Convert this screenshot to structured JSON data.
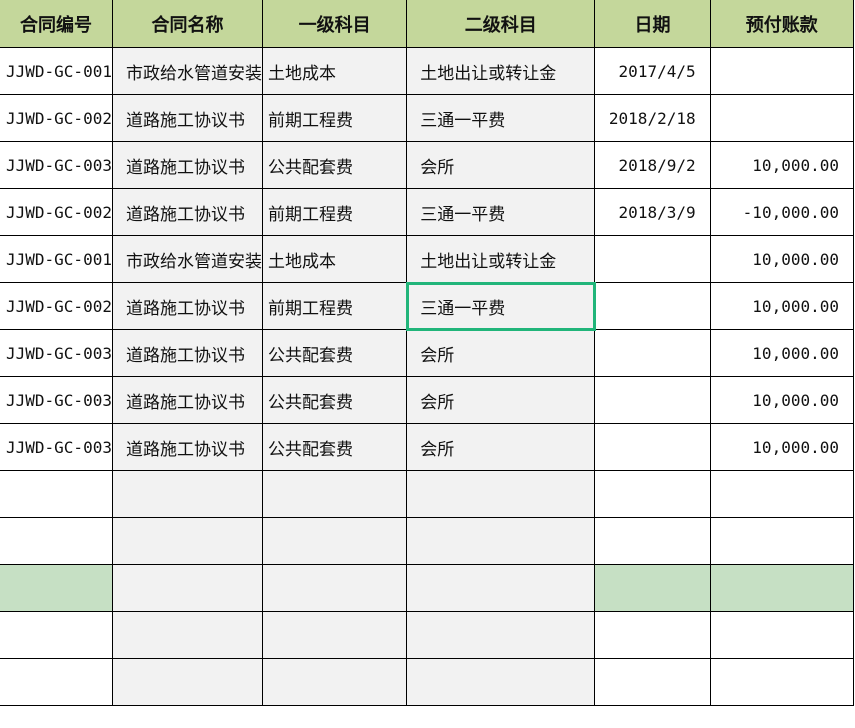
{
  "headers": [
    "合同编号",
    "合同名称",
    "一级科目",
    "二级科目",
    "日期",
    "预付账款"
  ],
  "rows": [
    {
      "id": "JJWD-GC-001",
      "name": "市政给水管道安装",
      "l1": "土地成本",
      "l2": "土地出让或转让金",
      "date": "2017/4/5",
      "amount": ""
    },
    {
      "id": "JJWD-GC-002",
      "name": "道路施工协议书",
      "l1": "前期工程费",
      "l2": "三通一平费",
      "date": "2018/2/18",
      "amount": ""
    },
    {
      "id": "JJWD-GC-003",
      "name": "道路施工协议书",
      "l1": "公共配套费",
      "l2": "会所",
      "date": "2018/9/2",
      "amount": "10,000.00"
    },
    {
      "id": "JJWD-GC-002",
      "name": "道路施工协议书",
      "l1": "前期工程费",
      "l2": "三通一平费",
      "date": "2018/3/9",
      "amount": "-10,000.00"
    },
    {
      "id": "JJWD-GC-001",
      "name": "市政给水管道安装",
      "l1": "土地成本",
      "l2": "土地出让或转让金",
      "date": "",
      "amount": "10,000.00"
    },
    {
      "id": "JJWD-GC-002",
      "name": "道路施工协议书",
      "l1": "前期工程费",
      "l2": "三通一平费",
      "date": "",
      "amount": "10,000.00"
    },
    {
      "id": "JJWD-GC-003",
      "name": "道路施工协议书",
      "l1": "公共配套费",
      "l2": "会所",
      "date": "",
      "amount": "10,000.00"
    },
    {
      "id": "JJWD-GC-003",
      "name": "道路施工协议书",
      "l1": "公共配套费",
      "l2": "会所",
      "date": "",
      "amount": "10,000.00"
    },
    {
      "id": "JJWD-GC-003",
      "name": "道路施工协议书",
      "l1": "公共配套费",
      "l2": "会所",
      "date": "",
      "amount": "10,000.00"
    }
  ],
  "colors": {
    "header": "#c4d79b",
    "shaded": "#f2f2f2",
    "highlight_row": "#c6e0c4",
    "selection": "#21b57a"
  }
}
